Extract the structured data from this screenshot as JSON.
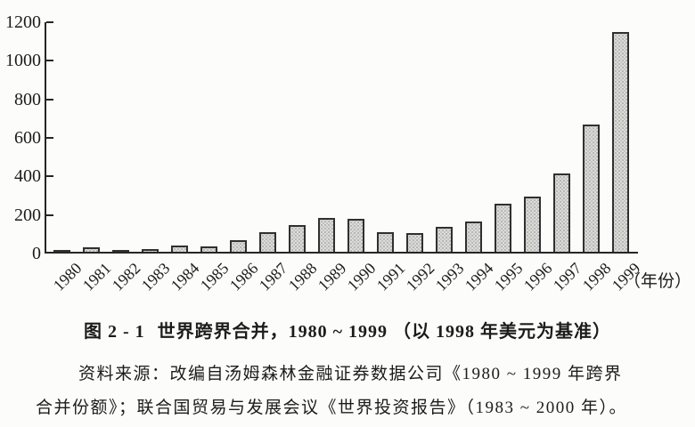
{
  "chart_data": {
    "type": "bar",
    "title": "世界跨界合并，1980 ~ 1999（以 1998 年美元为基准）",
    "categories": [
      "1980",
      "1981",
      "1982",
      "1983",
      "1984",
      "1985",
      "1986",
      "1987",
      "1988",
      "1989",
      "1990",
      "1991",
      "1992",
      "1993",
      "1994",
      "1995",
      "1996",
      "1997",
      "1998",
      "1999"
    ],
    "values": [
      8,
      22,
      8,
      15,
      33,
      27,
      58,
      100,
      138,
      175,
      172,
      100,
      97,
      130,
      155,
      250,
      285,
      406,
      660,
      1140
    ],
    "xlabel": "（年份）",
    "ylabel": "",
    "ylim": [
      0,
      1200
    ],
    "yticks": [
      0,
      200,
      400,
      600,
      800,
      1000,
      1200
    ],
    "grid": false,
    "legend": "none",
    "bar_fill": "#dcdcda",
    "bar_border": "#303030"
  },
  "caption": {
    "prefix": "图 2 - 1",
    "text": "世界跨界合并，1980 ~ 1999 （以 1998 年美元为基准）"
  },
  "source": {
    "lines": [
      "资料来源：改编自汤姆森林金融证券数据公司《1980 ~ 1999 年跨界",
      "合并份额》；联合国贸易与发展会议《世界投资报告》（1983 ~ 2000 年）。"
    ]
  }
}
